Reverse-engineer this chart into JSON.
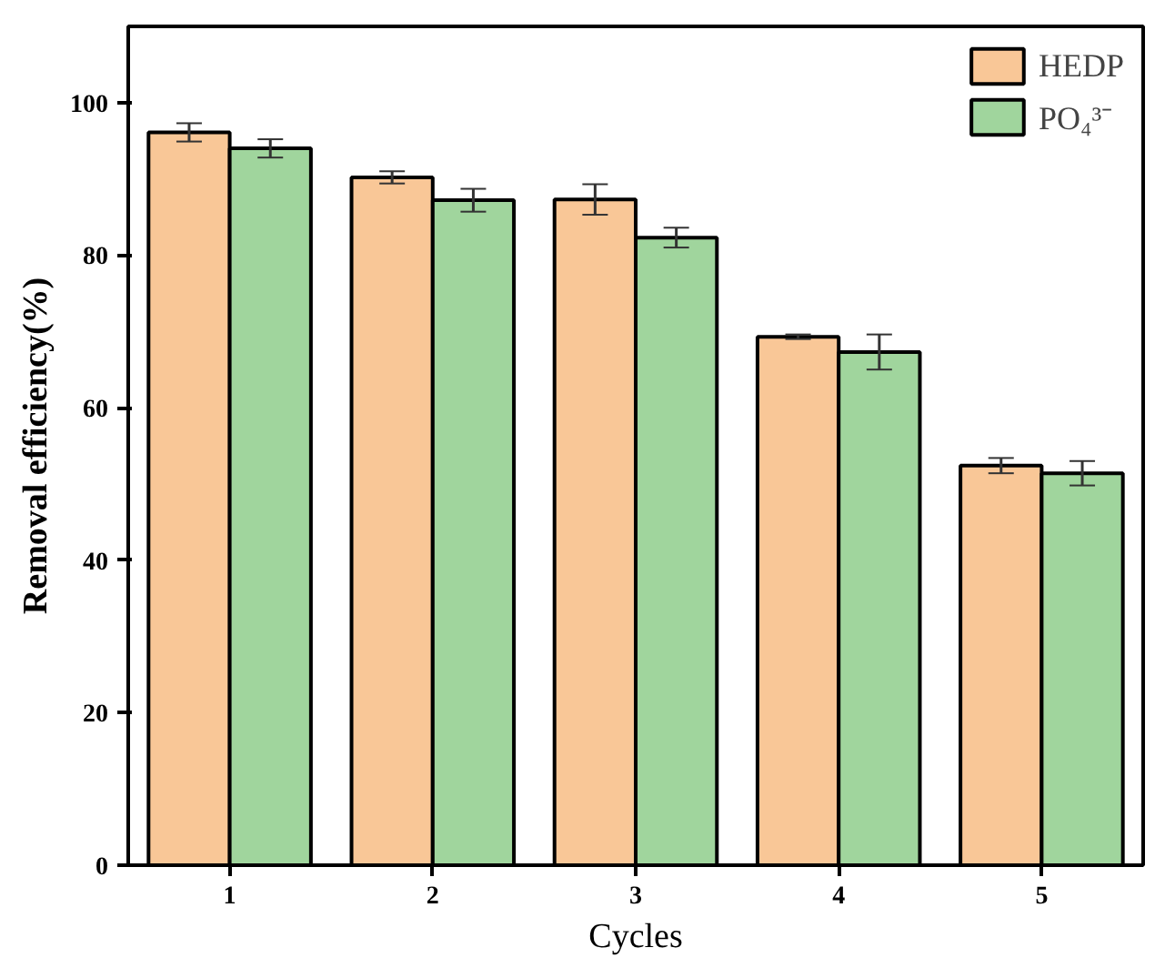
{
  "chart_data": {
    "type": "bar",
    "xlabel": "Cycles",
    "ylabel": "Removal efficiency(%)",
    "categories": [
      "1",
      "2",
      "3",
      "4",
      "5"
    ],
    "series": [
      {
        "name": "HEDP",
        "color": "#f9c797",
        "values": [
          96.1,
          90.2,
          87.3,
          69.3,
          52.4
        ],
        "errors": [
          1.2,
          0.8,
          2.0,
          0.3,
          1.0
        ]
      },
      {
        "name": "PO₄³⁻",
        "color": "#a0d59d",
        "values": [
          94.0,
          87.2,
          82.3,
          67.3,
          51.4
        ],
        "errors": [
          1.2,
          1.5,
          1.3,
          2.3,
          1.6
        ]
      }
    ],
    "ylim": [
      0,
      110
    ],
    "yticks": [
      0,
      20,
      40,
      60,
      80,
      100
    ],
    "legend": "top right",
    "grid": false
  }
}
